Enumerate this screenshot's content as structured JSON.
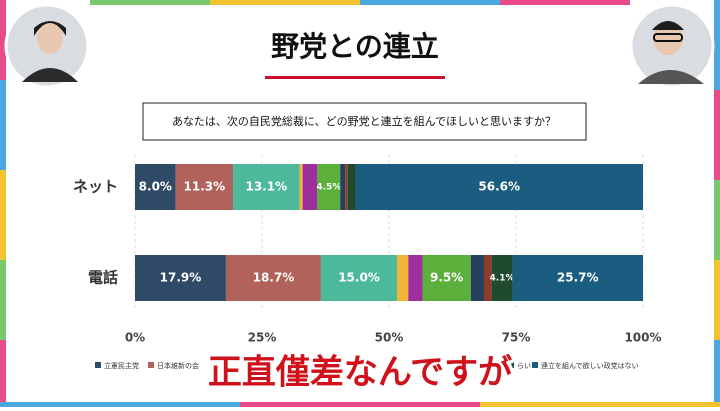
{
  "chart_data": {
    "type": "stacked-bar-horizontal",
    "title": "野党との連立",
    "subtitle": "あなたは、次の自民党総裁に、どの野党と連立を組んでほしいと思いますか？",
    "categories": [
      "ネット",
      "電話"
    ],
    "series": [
      {
        "name": "立憲民主党",
        "color": "#2f4a66",
        "values": [
          8.0,
          17.9
        ],
        "value_labels": [
          "8.0%",
          "17.9%"
        ]
      },
      {
        "name": "日本維新の会",
        "color": "#b0625b",
        "values": [
          11.3,
          18.7
        ],
        "value_labels": [
          "11.3%",
          "18.7%"
        ]
      },
      {
        "color": "#4cb99b",
        "values": [
          13.1,
          15.0
        ],
        "value_labels": [
          "13.1%",
          "15.0%"
        ]
      },
      {
        "color": "#f2b533",
        "values": [
          0.6,
          2.2
        ]
      },
      {
        "color": "#9c2f9c",
        "values": [
          2.9,
          2.8
        ]
      },
      {
        "color": "#5bb03b",
        "values": [
          4.5,
          9.5
        ],
        "value_labels": [
          "4.5%",
          "9.5%"
        ]
      },
      {
        "color": "#24405c",
        "values": [
          1.0,
          2.6
        ]
      },
      {
        "color": "#8c3a2a",
        "values": [
          0.5,
          1.5
        ]
      },
      {
        "name": "らい",
        "color": "#1f4a2b",
        "values": [
          1.5,
          4.1
        ],
        "value_labels": [
          null,
          "4.1%"
        ]
      },
      {
        "name": "連立を組んで欲しい政党はない",
        "color": "#1b5d80",
        "values": [
          56.6,
          25.7
        ],
        "value_labels": [
          "56.6%",
          "25.7%"
        ]
      }
    ],
    "xlim": [
      0,
      100
    ],
    "xticks": [
      {
        "value": 0,
        "label": "0%"
      },
      {
        "value": 25,
        "label": "25%"
      },
      {
        "value": 50,
        "label": "50%"
      },
      {
        "value": 75,
        "label": "75%"
      },
      {
        "value": 100,
        "label": "100%"
      }
    ]
  },
  "caption": "正直僅差なんですが"
}
